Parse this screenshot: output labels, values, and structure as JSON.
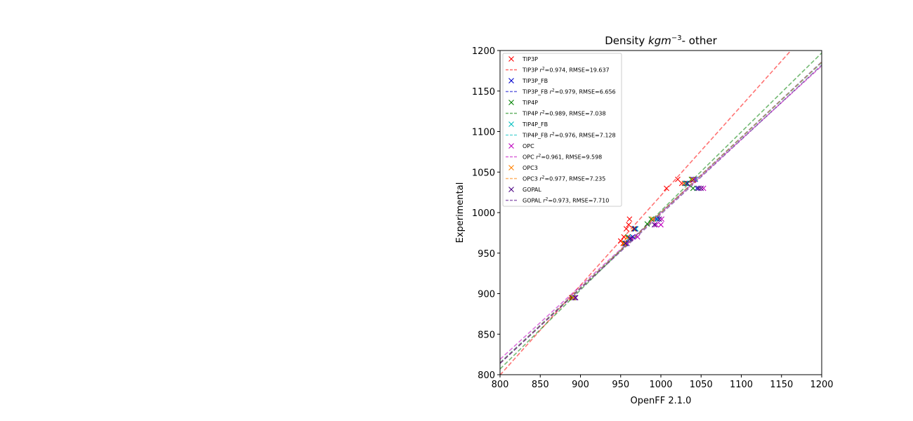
{
  "chart_data": {
    "type": "scatter",
    "title_main": "Density ",
    "title_unit_base": "kgm",
    "title_unit_exp": "−3",
    "title_suffix": "- other",
    "xlabel": "OpenFF 2.1.0",
    "ylabel": "Experimental",
    "xlim": [
      800,
      1200
    ],
    "ylim": [
      800,
      1200
    ],
    "xticks": [
      800,
      850,
      900,
      950,
      1000,
      1050,
      1100,
      1150,
      1200
    ],
    "yticks": [
      800,
      850,
      900,
      950,
      1000,
      1050,
      1100,
      1150,
      1200
    ],
    "grid": false,
    "legend_position": "upper-left",
    "series": [
      {
        "name": "TIP3P",
        "fit_label": "TIP3P r²=0.974, RMSE=19.637",
        "fit_pre": "TIP3P ",
        "fit_post": "=0.974, RMSE=19.637",
        "color": "#ff0000",
        "fit": {
          "slope": 1.107,
          "intercept": -86
        },
        "points": [
          [
            889,
            895
          ],
          [
            953,
            962
          ],
          [
            954,
            970
          ],
          [
            957,
            980
          ],
          [
            961,
            992
          ],
          [
            968,
            980
          ],
          [
            1007,
            1030
          ],
          [
            1021,
            1041
          ],
          [
            1026,
            1036
          ],
          [
            1040,
            1040
          ],
          [
            950,
            965
          ],
          [
            960,
            985
          ]
        ]
      },
      {
        "name": "TIP3P_FB",
        "fit_label": "TIP3P_FB r²=0.979, RMSE=6.656",
        "fit_pre": "TIP3P_FB ",
        "fit_post": "=0.979, RMSE=6.656",
        "color": "#0000cc",
        "fit": {
          "slope": 0.93,
          "intercept": 70
        },
        "points": [
          [
            891,
            895
          ],
          [
            957,
            962
          ],
          [
            960,
            968
          ],
          [
            965,
            970
          ],
          [
            968,
            980
          ],
          [
            995,
            992
          ],
          [
            1030,
            1036
          ],
          [
            1040,
            1041
          ],
          [
            1045,
            1030
          ]
        ]
      },
      {
        "name": "TIP4P",
        "fit_label": "TIP4P r²=0.989, RMSE=7.038",
        "fit_pre": "TIP4P ",
        "fit_post": "=0.989, RMSE=7.038",
        "color": "#008000",
        "fit": {
          "slope": 0.975,
          "intercept": 27
        },
        "points": [
          [
            890,
            895
          ],
          [
            955,
            962
          ],
          [
            959,
            970
          ],
          [
            966,
            980
          ],
          [
            983,
            986
          ],
          [
            988,
            992
          ],
          [
            1032,
            1036
          ],
          [
            1038,
            1041
          ],
          [
            1040,
            1030
          ]
        ]
      },
      {
        "name": "TIP4P_FB",
        "fit_label": "TIP4P_FB r²=0.976, RMSE=7.128",
        "fit_pre": "TIP4P_FB ",
        "fit_post": "=0.976, RMSE=7.128",
        "color": "#00bfbf",
        "fit": {
          "slope": 0.925,
          "intercept": 75
        },
        "points": [
          [
            892,
            895
          ],
          [
            957,
            962
          ],
          [
            961,
            969
          ],
          [
            969,
            980
          ],
          [
            996,
            992
          ],
          [
            1031,
            1036
          ],
          [
            1043,
            1041
          ]
        ]
      },
      {
        "name": "OPC",
        "fit_label": "OPC r²=0.961, RMSE=9.598",
        "fit_pre": "OPC ",
        "fit_post": "=0.961, RMSE=9.598",
        "color": "#bf00bf",
        "fit": {
          "slope": 0.905,
          "intercept": 95
        },
        "points": [
          [
            893,
            895
          ],
          [
            958,
            962
          ],
          [
            963,
            969
          ],
          [
            971,
            970
          ],
          [
            994,
            985
          ],
          [
            1000,
            985
          ],
          [
            1001,
            992
          ],
          [
            1042,
            1041
          ],
          [
            1053,
            1030
          ]
        ]
      },
      {
        "name": "OPC3",
        "fit_label": "OPC3 r²=0.977, RMSE=7.235",
        "fit_pre": "OPC3 ",
        "fit_post": "=0.977, RMSE=7.235",
        "color": "#ff8000",
        "fit": {
          "slope": 0.928,
          "intercept": 72
        },
        "points": [
          [
            891,
            895
          ],
          [
            954,
            962
          ],
          [
            958,
            969
          ],
          [
            966,
            980
          ],
          [
            990,
            992
          ],
          [
            1029,
            1036
          ],
          [
            1039,
            1041
          ]
        ]
      },
      {
        "name": "GOPAL",
        "fit_label": "GOPAL r²=0.973, RMSE=7.710",
        "fit_pre": "GOPAL ",
        "fit_post": "=0.973, RMSE=7.710",
        "color": "#4b0082",
        "fit": {
          "slope": 0.92,
          "intercept": 78
        },
        "points": [
          [
            894,
            895
          ],
          [
            956,
            962
          ],
          [
            962,
            968
          ],
          [
            967,
            980
          ],
          [
            992,
            985
          ],
          [
            998,
            992
          ],
          [
            1033,
            1036
          ],
          [
            1047,
            1030
          ],
          [
            1050,
            1030
          ]
        ]
      }
    ]
  }
}
